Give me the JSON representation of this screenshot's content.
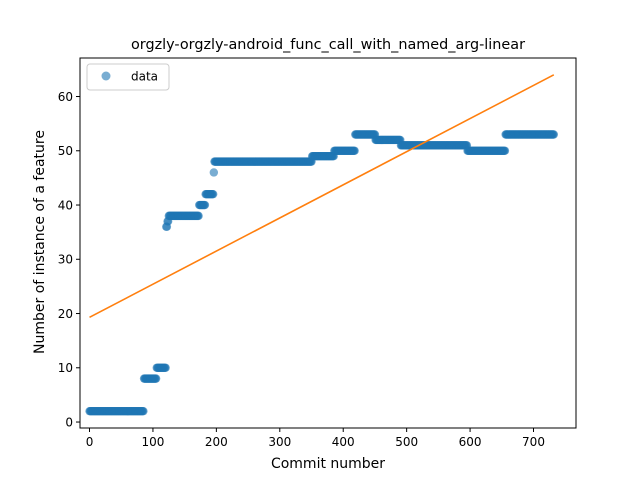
{
  "chart_data": {
    "type": "scatter",
    "title": "orgzly-orgzly-android_func_call_with_named_arg-linear",
    "xlabel": "Commit number",
    "ylabel": "Number of instance of a feature",
    "xlim": [
      -15,
      767
    ],
    "ylim": [
      -1.1,
      67.1
    ],
    "xticks": [
      0,
      100,
      200,
      300,
      400,
      500,
      600,
      700
    ],
    "yticks": [
      0,
      10,
      20,
      30,
      40,
      50,
      60
    ],
    "legend": {
      "position": "upper-left",
      "entries": [
        "data"
      ]
    },
    "colors": {
      "data": "#1f77b4",
      "fit": "#ff7f0e"
    },
    "series": [
      {
        "name": "data",
        "kind": "scatter",
        "segments": [
          {
            "x_start": 0,
            "x_end": 85,
            "y": 2
          },
          {
            "x_start": 86,
            "x_end": 105,
            "y": 8
          },
          {
            "x_start": 106,
            "x_end": 120,
            "y": 10
          },
          {
            "x_start": 121,
            "x_end": 122,
            "y": 36
          },
          {
            "x_start": 123,
            "x_end": 124,
            "y": 37
          },
          {
            "x_start": 125,
            "x_end": 172,
            "y": 38
          },
          {
            "x_start": 173,
            "x_end": 182,
            "y": 40
          },
          {
            "x_start": 183,
            "x_end": 195,
            "y": 42
          },
          {
            "x_start": 196,
            "x_end": 196,
            "y": 46
          },
          {
            "x_start": 197,
            "x_end": 350,
            "y": 48
          },
          {
            "x_start": 351,
            "x_end": 385,
            "y": 49
          },
          {
            "x_start": 386,
            "x_end": 418,
            "y": 50
          },
          {
            "x_start": 419,
            "x_end": 450,
            "y": 53
          },
          {
            "x_start": 451,
            "x_end": 490,
            "y": 52
          },
          {
            "x_start": 491,
            "x_end": 595,
            "y": 51
          },
          {
            "x_start": 596,
            "x_end": 655,
            "y": 50
          },
          {
            "x_start": 656,
            "x_end": 732,
            "y": 53
          }
        ]
      },
      {
        "name": "",
        "kind": "line",
        "x": [
          0,
          732
        ],
        "y": [
          19.3,
          64.0
        ]
      }
    ]
  }
}
